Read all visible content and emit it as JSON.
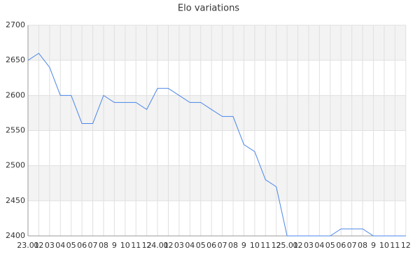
{
  "chart_data": {
    "type": "line",
    "title": "Elo variations",
    "categories": [
      "23.01",
      "02",
      "03",
      "04",
      "05",
      "06",
      "07",
      "08",
      "9",
      "10",
      "11",
      "12",
      "24.01",
      "02",
      "03",
      "04",
      "05",
      "06",
      "07",
      "08",
      "9",
      "10",
      "11",
      "12",
      "25.01",
      "02",
      "03",
      "04",
      "05",
      "06",
      "07",
      "08",
      "9",
      "10",
      "11",
      "12"
    ],
    "values": [
      2650,
      2660,
      2640,
      2600,
      2600,
      2560,
      2560,
      2600,
      2590,
      2590,
      2590,
      2580,
      2610,
      2610,
      2600,
      2590,
      2590,
      2580,
      2570,
      2570,
      2530,
      2520,
      2480,
      2470,
      2400,
      2400,
      2400,
      2400,
      2400,
      2410,
      2410,
      2410,
      2400,
      2400,
      2400,
      2400
    ],
    "color": "#4a86e8",
    "ylim": [
      2400,
      2700
    ],
    "yticks": [
      2400,
      2450,
      2500,
      2550,
      2600,
      2650,
      2700
    ],
    "grid": true
  }
}
